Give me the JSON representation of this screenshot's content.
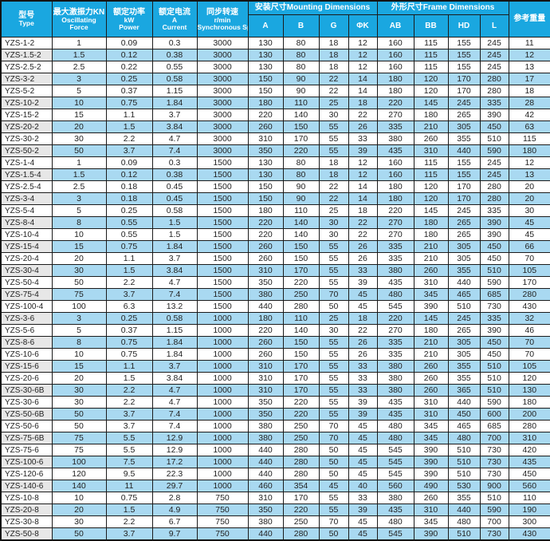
{
  "colors": {
    "header_bg": "#1aa7e0",
    "header_text": "#ffffff",
    "row_alt_bg": "#a9d9f1",
    "model_col_alt_bg": "#e7e7e7",
    "border": "#1b1b1b",
    "body_text": "#222222"
  },
  "table": {
    "header": {
      "type_zh": "型号",
      "type_en": "Type",
      "force_zh": "最大激振力KN",
      "force_en1": "Oscillating",
      "force_en2": "Force",
      "power_zh": "额定功率",
      "power_en1": "kW",
      "power_en2": "Power",
      "current_zh": "额定电流",
      "current_en1": "A",
      "current_en2": "Current",
      "speed_zh": "同步转速",
      "speed_en1": "r/min",
      "speed_en2": "Synchronous Speed",
      "mounting_group": "安装尺寸Mounting Dimensions",
      "frame_group": "外形尺寸Frame Dimensions",
      "mounting_cols": [
        "A",
        "B",
        "G",
        "ΦK"
      ],
      "frame_cols": [
        "AB",
        "BB",
        "HD",
        "L"
      ],
      "weight": "参考重量"
    },
    "rows": [
      [
        "YZS-1-2",
        "1",
        "0.09",
        "0.3",
        "3000",
        "130",
        "80",
        "18",
        "12",
        "160",
        "115",
        "155",
        "245",
        "11"
      ],
      [
        "YZS-1.5-2",
        "1.5",
        "0.12",
        "0.38",
        "3000",
        "130",
        "80",
        "18",
        "12",
        "160",
        "115",
        "155",
        "245",
        "12"
      ],
      [
        "YZS-2.5-2",
        "2.5",
        "0.22",
        "0.55",
        "3000",
        "130",
        "80",
        "18",
        "12",
        "160",
        "115",
        "155",
        "245",
        "13"
      ],
      [
        "YZS-3-2",
        "3",
        "0.25",
        "0.58",
        "3000",
        "150",
        "90",
        "22",
        "14",
        "180",
        "120",
        "170",
        "280",
        "17"
      ],
      [
        "YZS-5-2",
        "5",
        "0.37",
        "1.15",
        "3000",
        "150",
        "90",
        "22",
        "14",
        "180",
        "120",
        "170",
        "280",
        "18"
      ],
      [
        "YZS-10-2",
        "10",
        "0.75",
        "1.84",
        "3000",
        "180",
        "110",
        "25",
        "18",
        "220",
        "145",
        "245",
        "335",
        "28"
      ],
      [
        "YZS-15-2",
        "15",
        "1.1",
        "3.7",
        "3000",
        "220",
        "140",
        "30",
        "22",
        "270",
        "180",
        "265",
        "390",
        "42"
      ],
      [
        "YZS-20-2",
        "20",
        "1.5",
        "3.84",
        "3000",
        "260",
        "150",
        "55",
        "26",
        "335",
        "210",
        "305",
        "450",
        "63"
      ],
      [
        "YZS-30-2",
        "30",
        "2.2",
        "4.7",
        "3000",
        "310",
        "170",
        "55",
        "33",
        "380",
        "260",
        "355",
        "510",
        "115"
      ],
      [
        "YZS-50-2",
        "50",
        "3.7",
        "7.4",
        "3000",
        "350",
        "220",
        "55",
        "39",
        "435",
        "310",
        "440",
        "590",
        "180"
      ],
      [
        "YZS-1-4",
        "1",
        "0.09",
        "0.3",
        "1500",
        "130",
        "80",
        "18",
        "12",
        "160",
        "115",
        "155",
        "245",
        "12"
      ],
      [
        "YZS-1.5-4",
        "1.5",
        "0.12",
        "0.38",
        "1500",
        "130",
        "80",
        "18",
        "12",
        "160",
        "115",
        "155",
        "245",
        "13"
      ],
      [
        "YZS-2.5-4",
        "2.5",
        "0.18",
        "0.45",
        "1500",
        "150",
        "90",
        "22",
        "14",
        "180",
        "120",
        "170",
        "280",
        "20"
      ],
      [
        "YZS-3-4",
        "3",
        "0.18",
        "0.45",
        "1500",
        "150",
        "90",
        "22",
        "14",
        "180",
        "120",
        "170",
        "280",
        "20"
      ],
      [
        "YZS-5-4",
        "5",
        "0.25",
        "0.58",
        "1500",
        "180",
        "110",
        "25",
        "18",
        "220",
        "145",
        "245",
        "335",
        "30"
      ],
      [
        "YZS-8-4",
        "8",
        "0.55",
        "1.5",
        "1500",
        "220",
        "140",
        "30",
        "22",
        "270",
        "180",
        "265",
        "390",
        "45"
      ],
      [
        "YZS-10-4",
        "10",
        "0.55",
        "1.5",
        "1500",
        "220",
        "140",
        "30",
        "22",
        "270",
        "180",
        "265",
        "390",
        "45"
      ],
      [
        "YZS-15-4",
        "15",
        "0.75",
        "1.84",
        "1500",
        "260",
        "150",
        "55",
        "26",
        "335",
        "210",
        "305",
        "450",
        "66"
      ],
      [
        "YZS-20-4",
        "20",
        "1.1",
        "3.7",
        "1500",
        "260",
        "150",
        "55",
        "26",
        "335",
        "210",
        "305",
        "450",
        "70"
      ],
      [
        "YZS-30-4",
        "30",
        "1.5",
        "3.84",
        "1500",
        "310",
        "170",
        "55",
        "33",
        "380",
        "260",
        "355",
        "510",
        "105"
      ],
      [
        "YZS-50-4",
        "50",
        "2.2",
        "4.7",
        "1500",
        "350",
        "220",
        "55",
        "39",
        "435",
        "310",
        "440",
        "590",
        "170"
      ],
      [
        "YZS-75-4",
        "75",
        "3.7",
        "7.4",
        "1500",
        "380",
        "250",
        "70",
        "45",
        "480",
        "345",
        "465",
        "685",
        "280"
      ],
      [
        "YZS-100-4",
        "100",
        "6.3",
        "13.2",
        "1500",
        "440",
        "280",
        "50",
        "45",
        "545",
        "390",
        "510",
        "730",
        "430"
      ],
      [
        "YZS-3-6",
        "3",
        "0.25",
        "0.58",
        "1000",
        "180",
        "110",
        "25",
        "18",
        "220",
        "145",
        "245",
        "335",
        "32"
      ],
      [
        "YZS-5-6",
        "5",
        "0.37",
        "1.15",
        "1000",
        "220",
        "140",
        "30",
        "22",
        "270",
        "180",
        "265",
        "390",
        "46"
      ],
      [
        "YZS-8-6",
        "8",
        "0.75",
        "1.84",
        "1000",
        "260",
        "150",
        "55",
        "26",
        "335",
        "210",
        "305",
        "450",
        "70"
      ],
      [
        "YZS-10-6",
        "10",
        "0.75",
        "1.84",
        "1000",
        "260",
        "150",
        "55",
        "26",
        "335",
        "210",
        "305",
        "450",
        "70"
      ],
      [
        "YZS-15-6",
        "15",
        "1.1",
        "3.7",
        "1000",
        "310",
        "170",
        "55",
        "33",
        "380",
        "260",
        "355",
        "510",
        "105"
      ],
      [
        "YZS-20-6",
        "20",
        "1.5",
        "3.84",
        "1000",
        "310",
        "170",
        "55",
        "33",
        "380",
        "260",
        "355",
        "510",
        "120"
      ],
      [
        "YZS-30-6B",
        "30",
        "2.2",
        "4.7",
        "1000",
        "310",
        "170",
        "55",
        "33",
        "380",
        "260",
        "365",
        "510",
        "130"
      ],
      [
        "YZS-30-6",
        "30",
        "2.2",
        "4.7",
        "1000",
        "350",
        "220",
        "55",
        "39",
        "435",
        "310",
        "440",
        "590",
        "180"
      ],
      [
        "YZS-50-6B",
        "50",
        "3.7",
        "7.4",
        "1000",
        "350",
        "220",
        "55",
        "39",
        "435",
        "310",
        "450",
        "600",
        "200"
      ],
      [
        "YZS-50-6",
        "50",
        "3.7",
        "7.4",
        "1000",
        "380",
        "250",
        "70",
        "45",
        "480",
        "345",
        "465",
        "685",
        "280"
      ],
      [
        "YZS-75-6B",
        "75",
        "5.5",
        "12.9",
        "1000",
        "380",
        "250",
        "70",
        "45",
        "480",
        "345",
        "480",
        "700",
        "310"
      ],
      [
        "YZS-75-6",
        "75",
        "5.5",
        "12.9",
        "1000",
        "440",
        "280",
        "50",
        "45",
        "545",
        "390",
        "510",
        "730",
        "420"
      ],
      [
        "YZS-100-6",
        "100",
        "7.5",
        "17.2",
        "1000",
        "440",
        "280",
        "50",
        "45",
        "545",
        "390",
        "510",
        "730",
        "435"
      ],
      [
        "YZS-120-6",
        "120",
        "9.5",
        "22.3",
        "1000",
        "440",
        "280",
        "50",
        "45",
        "545",
        "390",
        "510",
        "730",
        "450"
      ],
      [
        "YZS-140-6",
        "140",
        "11",
        "29.7",
        "1000",
        "460",
        "354",
        "45",
        "40",
        "560",
        "490",
        "530",
        "900",
        "560"
      ],
      [
        "YZS-10-8",
        "10",
        "0.75",
        "2.8",
        "750",
        "310",
        "170",
        "55",
        "33",
        "380",
        "260",
        "355",
        "510",
        "110"
      ],
      [
        "YZS-20-8",
        "20",
        "1.5",
        "4.9",
        "750",
        "350",
        "220",
        "55",
        "39",
        "435",
        "310",
        "440",
        "590",
        "190"
      ],
      [
        "YZS-30-8",
        "30",
        "2.2",
        "6.7",
        "750",
        "380",
        "250",
        "70",
        "45",
        "480",
        "345",
        "480",
        "700",
        "300"
      ],
      [
        "YZS-50-8",
        "50",
        "3.7",
        "9.7",
        "750",
        "440",
        "280",
        "50",
        "45",
        "545",
        "390",
        "510",
        "730",
        "430"
      ]
    ]
  }
}
